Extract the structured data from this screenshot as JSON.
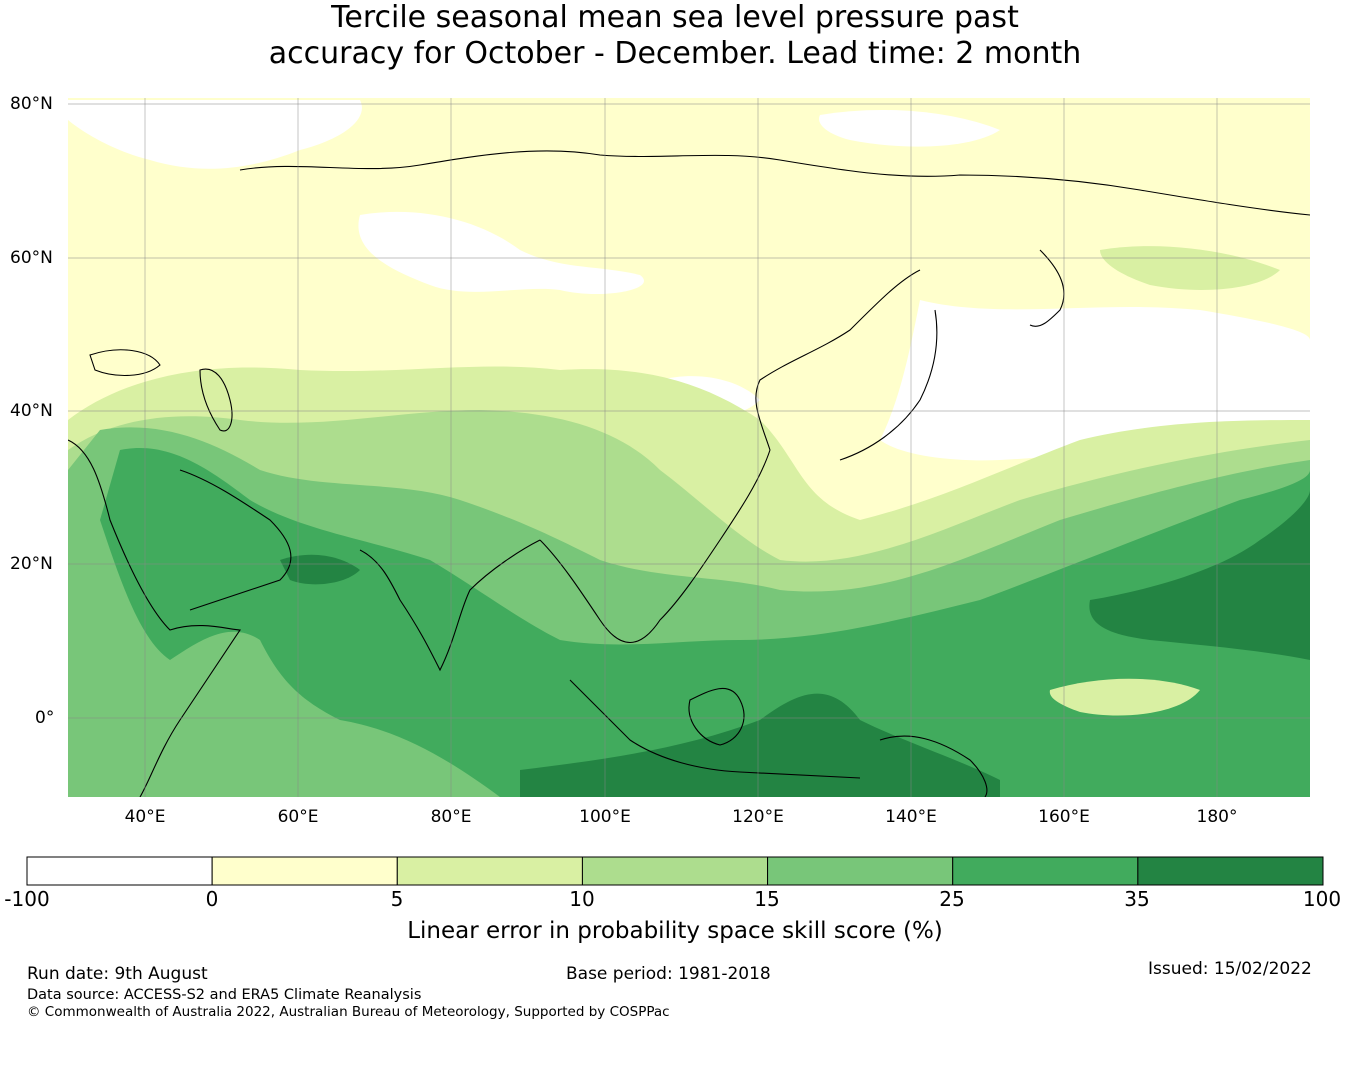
{
  "title": {
    "line1": "Tercile seasonal mean sea level pressure past",
    "line2": "accuracy for October - December. Lead time: 2 month"
  },
  "map": {
    "lat_labels": [
      "80°N",
      "60°N",
      "40°N",
      "20°N",
      "0°"
    ],
    "lon_labels": [
      "40°E",
      "60°E",
      "80°E",
      "100°E",
      "120°E",
      "140°E",
      "160°E",
      "180°"
    ]
  },
  "colorbar": {
    "ticks": [
      "-100",
      "0",
      "5",
      "10",
      "15",
      "25",
      "35",
      "100"
    ],
    "colors": [
      "#ffffff",
      "#ffffcc",
      "#d9f0a3",
      "#addd8e",
      "#78c679",
      "#41ab5d",
      "#238443"
    ],
    "label": "Linear error in probability space skill score (%)"
  },
  "footer": {
    "run_date": "Run date: 9th August",
    "base_period": "Base period: 1981-2018",
    "issued": "Issued: 15/02/2022",
    "data_source": "Data source: ACCESS-S2 and ERA5 Climate Reanalysis",
    "copyright": "© Commonwealth of Australia 2022, Australian Bureau of Meteorology, Supported by COSPPac"
  }
}
